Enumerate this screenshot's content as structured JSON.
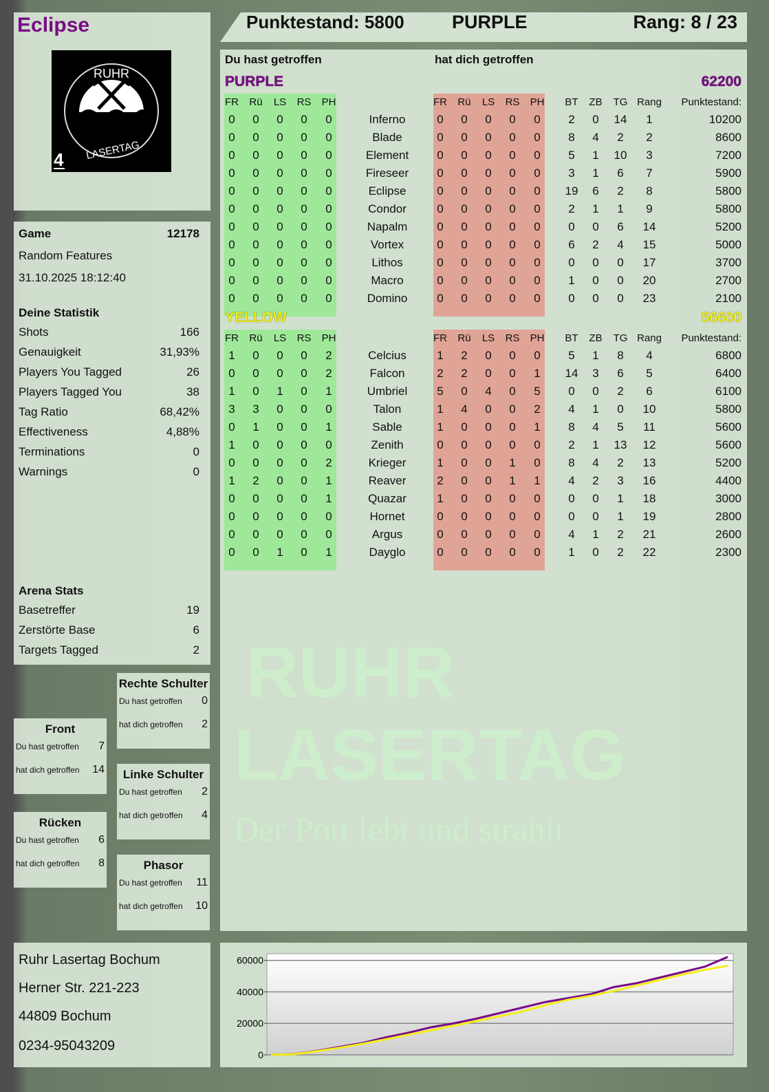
{
  "player": {
    "name": "Eclipse",
    "logo_text": "RUHR LASERTAG",
    "logo_number": "4"
  },
  "header": {
    "score_label": "Punktestand: 5800",
    "team": "PURPLE",
    "rank_label": "Rang: 8 / 23"
  },
  "game": {
    "label": "Game",
    "id": "12178",
    "mode": "Random Features",
    "datetime": "31.10.2025 18:12:40"
  },
  "stats": {
    "title": "Deine Statistik",
    "items": [
      {
        "label": "Shots",
        "value": "166"
      },
      {
        "label": "Genauigkeit",
        "value": "31,93%"
      },
      {
        "label": "Players You Tagged",
        "value": "26"
      },
      {
        "label": "Players Tagged You",
        "value": "38"
      },
      {
        "label": "Tag Ratio",
        "value": "68,42%"
      },
      {
        "label": "Effectiveness",
        "value": "4,88%"
      },
      {
        "label": "Terminations",
        "value": "0"
      },
      {
        "label": "Warnings",
        "value": "0"
      }
    ]
  },
  "arena": {
    "title": "Arena Stats",
    "items": [
      {
        "label": "Basetreffer",
        "value": "19"
      },
      {
        "label": "Zerstörte Base",
        "value": "6"
      },
      {
        "label": "Targets Tagged",
        "value": "2"
      }
    ]
  },
  "zones": [
    {
      "title": "Rechte Schulter",
      "hit": "0",
      "hit_by": "2"
    },
    {
      "title": "Front",
      "hit": "7",
      "hit_by": "14"
    },
    {
      "title": "Linke Schulter",
      "hit": "2",
      "hit_by": "4"
    },
    {
      "title": "Rücken",
      "hit": "6",
      "hit_by": "8"
    },
    {
      "title": "Phasor",
      "hit": "11",
      "hit_by": "10"
    }
  ],
  "zone_labels": {
    "hit": "Du hast getroffen",
    "hit_by": "hat dich getroffen"
  },
  "table": {
    "you_hit": "Du hast getroffen",
    "hit_you": "hat dich getroffen",
    "cols_hit": [
      "FR",
      "Rü",
      "LS",
      "RS",
      "PH"
    ],
    "cols_stats": [
      "BT",
      "ZB",
      "TG",
      "Rang",
      "Punktestand:"
    ],
    "teams": [
      {
        "name": "PURPLE",
        "score": "62200",
        "color": "#7a0a86",
        "rows": [
          [
            "Inferno",
            [
              0,
              0,
              0,
              0,
              0
            ],
            [
              0,
              0,
              0,
              0,
              0
            ],
            [
              2,
              0,
              14,
              1
            ],
            10200
          ],
          [
            "Blade",
            [
              0,
              0,
              0,
              0,
              0
            ],
            [
              0,
              0,
              0,
              0,
              0
            ],
            [
              8,
              4,
              2,
              2
            ],
            8600
          ],
          [
            "Element",
            [
              0,
              0,
              0,
              0,
              0
            ],
            [
              0,
              0,
              0,
              0,
              0
            ],
            [
              5,
              1,
              10,
              3
            ],
            7200
          ],
          [
            "Fireseer",
            [
              0,
              0,
              0,
              0,
              0
            ],
            [
              0,
              0,
              0,
              0,
              0
            ],
            [
              3,
              1,
              6,
              7
            ],
            5900
          ],
          [
            "Eclipse",
            [
              0,
              0,
              0,
              0,
              0
            ],
            [
              0,
              0,
              0,
              0,
              0
            ],
            [
              19,
              6,
              2,
              8
            ],
            5800
          ],
          [
            "Condor",
            [
              0,
              0,
              0,
              0,
              0
            ],
            [
              0,
              0,
              0,
              0,
              0
            ],
            [
              2,
              1,
              1,
              9
            ],
            5800
          ],
          [
            "Napalm",
            [
              0,
              0,
              0,
              0,
              0
            ],
            [
              0,
              0,
              0,
              0,
              0
            ],
            [
              0,
              0,
              6,
              14
            ],
            5200
          ],
          [
            "Vortex",
            [
              0,
              0,
              0,
              0,
              0
            ],
            [
              0,
              0,
              0,
              0,
              0
            ],
            [
              6,
              2,
              4,
              15
            ],
            5000
          ],
          [
            "Lithos",
            [
              0,
              0,
              0,
              0,
              0
            ],
            [
              0,
              0,
              0,
              0,
              0
            ],
            [
              0,
              0,
              0,
              17
            ],
            3700
          ],
          [
            "Macro",
            [
              0,
              0,
              0,
              0,
              0
            ],
            [
              0,
              0,
              0,
              0,
              0
            ],
            [
              1,
              0,
              0,
              20
            ],
            2700
          ],
          [
            "Domino",
            [
              0,
              0,
              0,
              0,
              0
            ],
            [
              0,
              0,
              0,
              0,
              0
            ],
            [
              0,
              0,
              0,
              23
            ],
            2100
          ]
        ]
      },
      {
        "name": "YELLOW",
        "score": "56600",
        "color": "#f2ee1a",
        "rows": [
          [
            "Celcius",
            [
              1,
              0,
              0,
              0,
              2
            ],
            [
              1,
              2,
              0,
              0,
              0
            ],
            [
              5,
              1,
              8,
              4
            ],
            6800
          ],
          [
            "Falcon",
            [
              0,
              0,
              0,
              0,
              2
            ],
            [
              2,
              2,
              0,
              0,
              1
            ],
            [
              14,
              3,
              6,
              5
            ],
            6400
          ],
          [
            "Umbriel",
            [
              1,
              0,
              1,
              0,
              1
            ],
            [
              5,
              0,
              4,
              0,
              5
            ],
            [
              0,
              0,
              2,
              6
            ],
            6100
          ],
          [
            "Talon",
            [
              3,
              3,
              0,
              0,
              0
            ],
            [
              1,
              4,
              0,
              0,
              2
            ],
            [
              4,
              1,
              0,
              10
            ],
            5800
          ],
          [
            "Sable",
            [
              0,
              1,
              0,
              0,
              1
            ],
            [
              1,
              0,
              0,
              0,
              1
            ],
            [
              8,
              4,
              5,
              11
            ],
            5600
          ],
          [
            "Zenith",
            [
              1,
              0,
              0,
              0,
              0
            ],
            [
              0,
              0,
              0,
              0,
              0
            ],
            [
              2,
              1,
              13,
              12
            ],
            5600
          ],
          [
            "Krieger",
            [
              0,
              0,
              0,
              0,
              2
            ],
            [
              1,
              0,
              0,
              1,
              0
            ],
            [
              8,
              4,
              2,
              13
            ],
            5200
          ],
          [
            "Reaver",
            [
              1,
              2,
              0,
              0,
              1
            ],
            [
              2,
              0,
              0,
              1,
              1
            ],
            [
              4,
              2,
              3,
              16
            ],
            4400
          ],
          [
            "Quazar",
            [
              0,
              0,
              0,
              0,
              1
            ],
            [
              1,
              0,
              0,
              0,
              0
            ],
            [
              0,
              0,
              1,
              18
            ],
            3000
          ],
          [
            "Hornet",
            [
              0,
              0,
              0,
              0,
              0
            ],
            [
              0,
              0,
              0,
              0,
              0
            ],
            [
              0,
              0,
              1,
              19
            ],
            2800
          ],
          [
            "Argus",
            [
              0,
              0,
              0,
              0,
              0
            ],
            [
              0,
              0,
              0,
              0,
              0
            ],
            [
              4,
              1,
              2,
              21
            ],
            2600
          ],
          [
            "Dayglo",
            [
              0,
              0,
              1,
              0,
              1
            ],
            [
              0,
              0,
              0,
              0,
              0
            ],
            [
              1,
              0,
              2,
              22
            ],
            2300
          ]
        ]
      }
    ]
  },
  "address": {
    "lines": [
      "Ruhr Lasertag Bochum",
      "Herner Str. 221-223",
      "44809 Bochum",
      "0234-95043209"
    ]
  },
  "watermark": {
    "line1": "RUHR",
    "line2": "LASERTAG",
    "slogan": "Der Pott lebt und strahlt"
  },
  "colors": {
    "hit_bg": "#9fe89a",
    "hit_by_bg": "#e0a496",
    "purple": "#7a0a86",
    "yellow": "#f2ee1a"
  },
  "chart_data": {
    "type": "line",
    "ylim": [
      0,
      62500
    ],
    "yticks": [
      0,
      20000,
      40000,
      60000
    ],
    "grid": true,
    "series": [
      {
        "color": "#7a0a86",
        "values": [
          0,
          500,
          2500,
          5000,
          7500,
          11000,
          14000,
          17500,
          20000,
          23000,
          26500,
          30000,
          33500,
          36000,
          38500,
          43000,
          45500,
          49000,
          52500,
          56000,
          62200
        ]
      },
      {
        "color": "#f2ee1a",
        "values": [
          0,
          400,
          2300,
          4500,
          7000,
          9800,
          12800,
          15500,
          18500,
          21500,
          24500,
          27500,
          31500,
          35000,
          37500,
          40500,
          44000,
          47500,
          51000,
          54000,
          56600
        ]
      }
    ]
  }
}
